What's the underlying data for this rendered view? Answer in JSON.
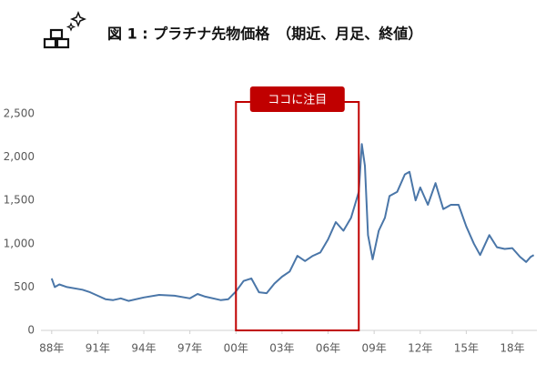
{
  "chart_data": {
    "type": "line",
    "title": "図 1 : プラチナ先物価格　（期近、月足、終値）",
    "x": [
      1988.0,
      1988.2,
      1988.5,
      1989.0,
      1990.0,
      1990.5,
      1991.0,
      1991.5,
      1992.0,
      1992.5,
      1993.0,
      1994.0,
      1995.0,
      1996.0,
      1997.0,
      1997.5,
      1998.0,
      1999.0,
      1999.5,
      2000.0,
      2000.5,
      2001.0,
      2001.5,
      2002.0,
      2002.5,
      2003.0,
      2003.5,
      2004.0,
      2004.5,
      2005.0,
      2005.5,
      2006.0,
      2006.5,
      2007.0,
      2007.5,
      2008.0,
      2008.2,
      2008.4,
      2008.6,
      2008.9,
      2009.3,
      2009.7,
      2010.0,
      2010.5,
      2011.0,
      2011.3,
      2011.7,
      2012.0,
      2012.5,
      2013.0,
      2013.5,
      2014.0,
      2014.5,
      2015.0,
      2015.5,
      2015.9,
      2016.5,
      2017.0,
      2017.5,
      2018.0,
      2018.5,
      2018.9,
      2019.2,
      2019.4
    ],
    "series": [
      {
        "color": "#4a76a8",
        "values": [
          600,
          500,
          530,
          500,
          470,
          440,
          400,
          360,
          350,
          370,
          340,
          380,
          410,
          400,
          370,
          420,
          390,
          350,
          360,
          450,
          570,
          600,
          440,
          430,
          540,
          620,
          680,
          860,
          800,
          860,
          900,
          1050,
          1250,
          1150,
          1300,
          1600,
          2150,
          1900,
          1100,
          820,
          1150,
          1300,
          1550,
          1600,
          1800,
          1830,
          1500,
          1650,
          1450,
          1700,
          1400,
          1450,
          1450,
          1200,
          1000,
          870,
          1100,
          960,
          940,
          950,
          850,
          790,
          850,
          870
        ]
      }
    ],
    "xlim": [
      1987.3,
      2019.6
    ],
    "xticks": [
      {
        "value": 1988,
        "label": "88年"
      },
      {
        "value": 1991,
        "label": "91年"
      },
      {
        "value": 1994,
        "label": "94年"
      },
      {
        "value": 1997,
        "label": "97年"
      },
      {
        "value": 2000,
        "label": "00年"
      },
      {
        "value": 2003,
        "label": "03年"
      },
      {
        "value": 2006,
        "label": "06年"
      },
      {
        "value": 2009,
        "label": "09年"
      },
      {
        "value": 2012,
        "label": "12年"
      },
      {
        "value": 2015,
        "label": "15年"
      },
      {
        "value": 2018,
        "label": "18年"
      }
    ],
    "ylim": [
      0,
      2500
    ],
    "yticks": [
      0,
      500,
      {
        "value": 1000,
        "label": "1,000"
      },
      {
        "value": 1500,
        "label": "1,500"
      },
      {
        "value": 2000,
        "label": "2,000"
      },
      {
        "value": 2500,
        "label": "2,500"
      }
    ],
    "highlight": {
      "label": "ココに注目",
      "x": [
        2000,
        2008
      ],
      "color": "#c00000"
    }
  }
}
